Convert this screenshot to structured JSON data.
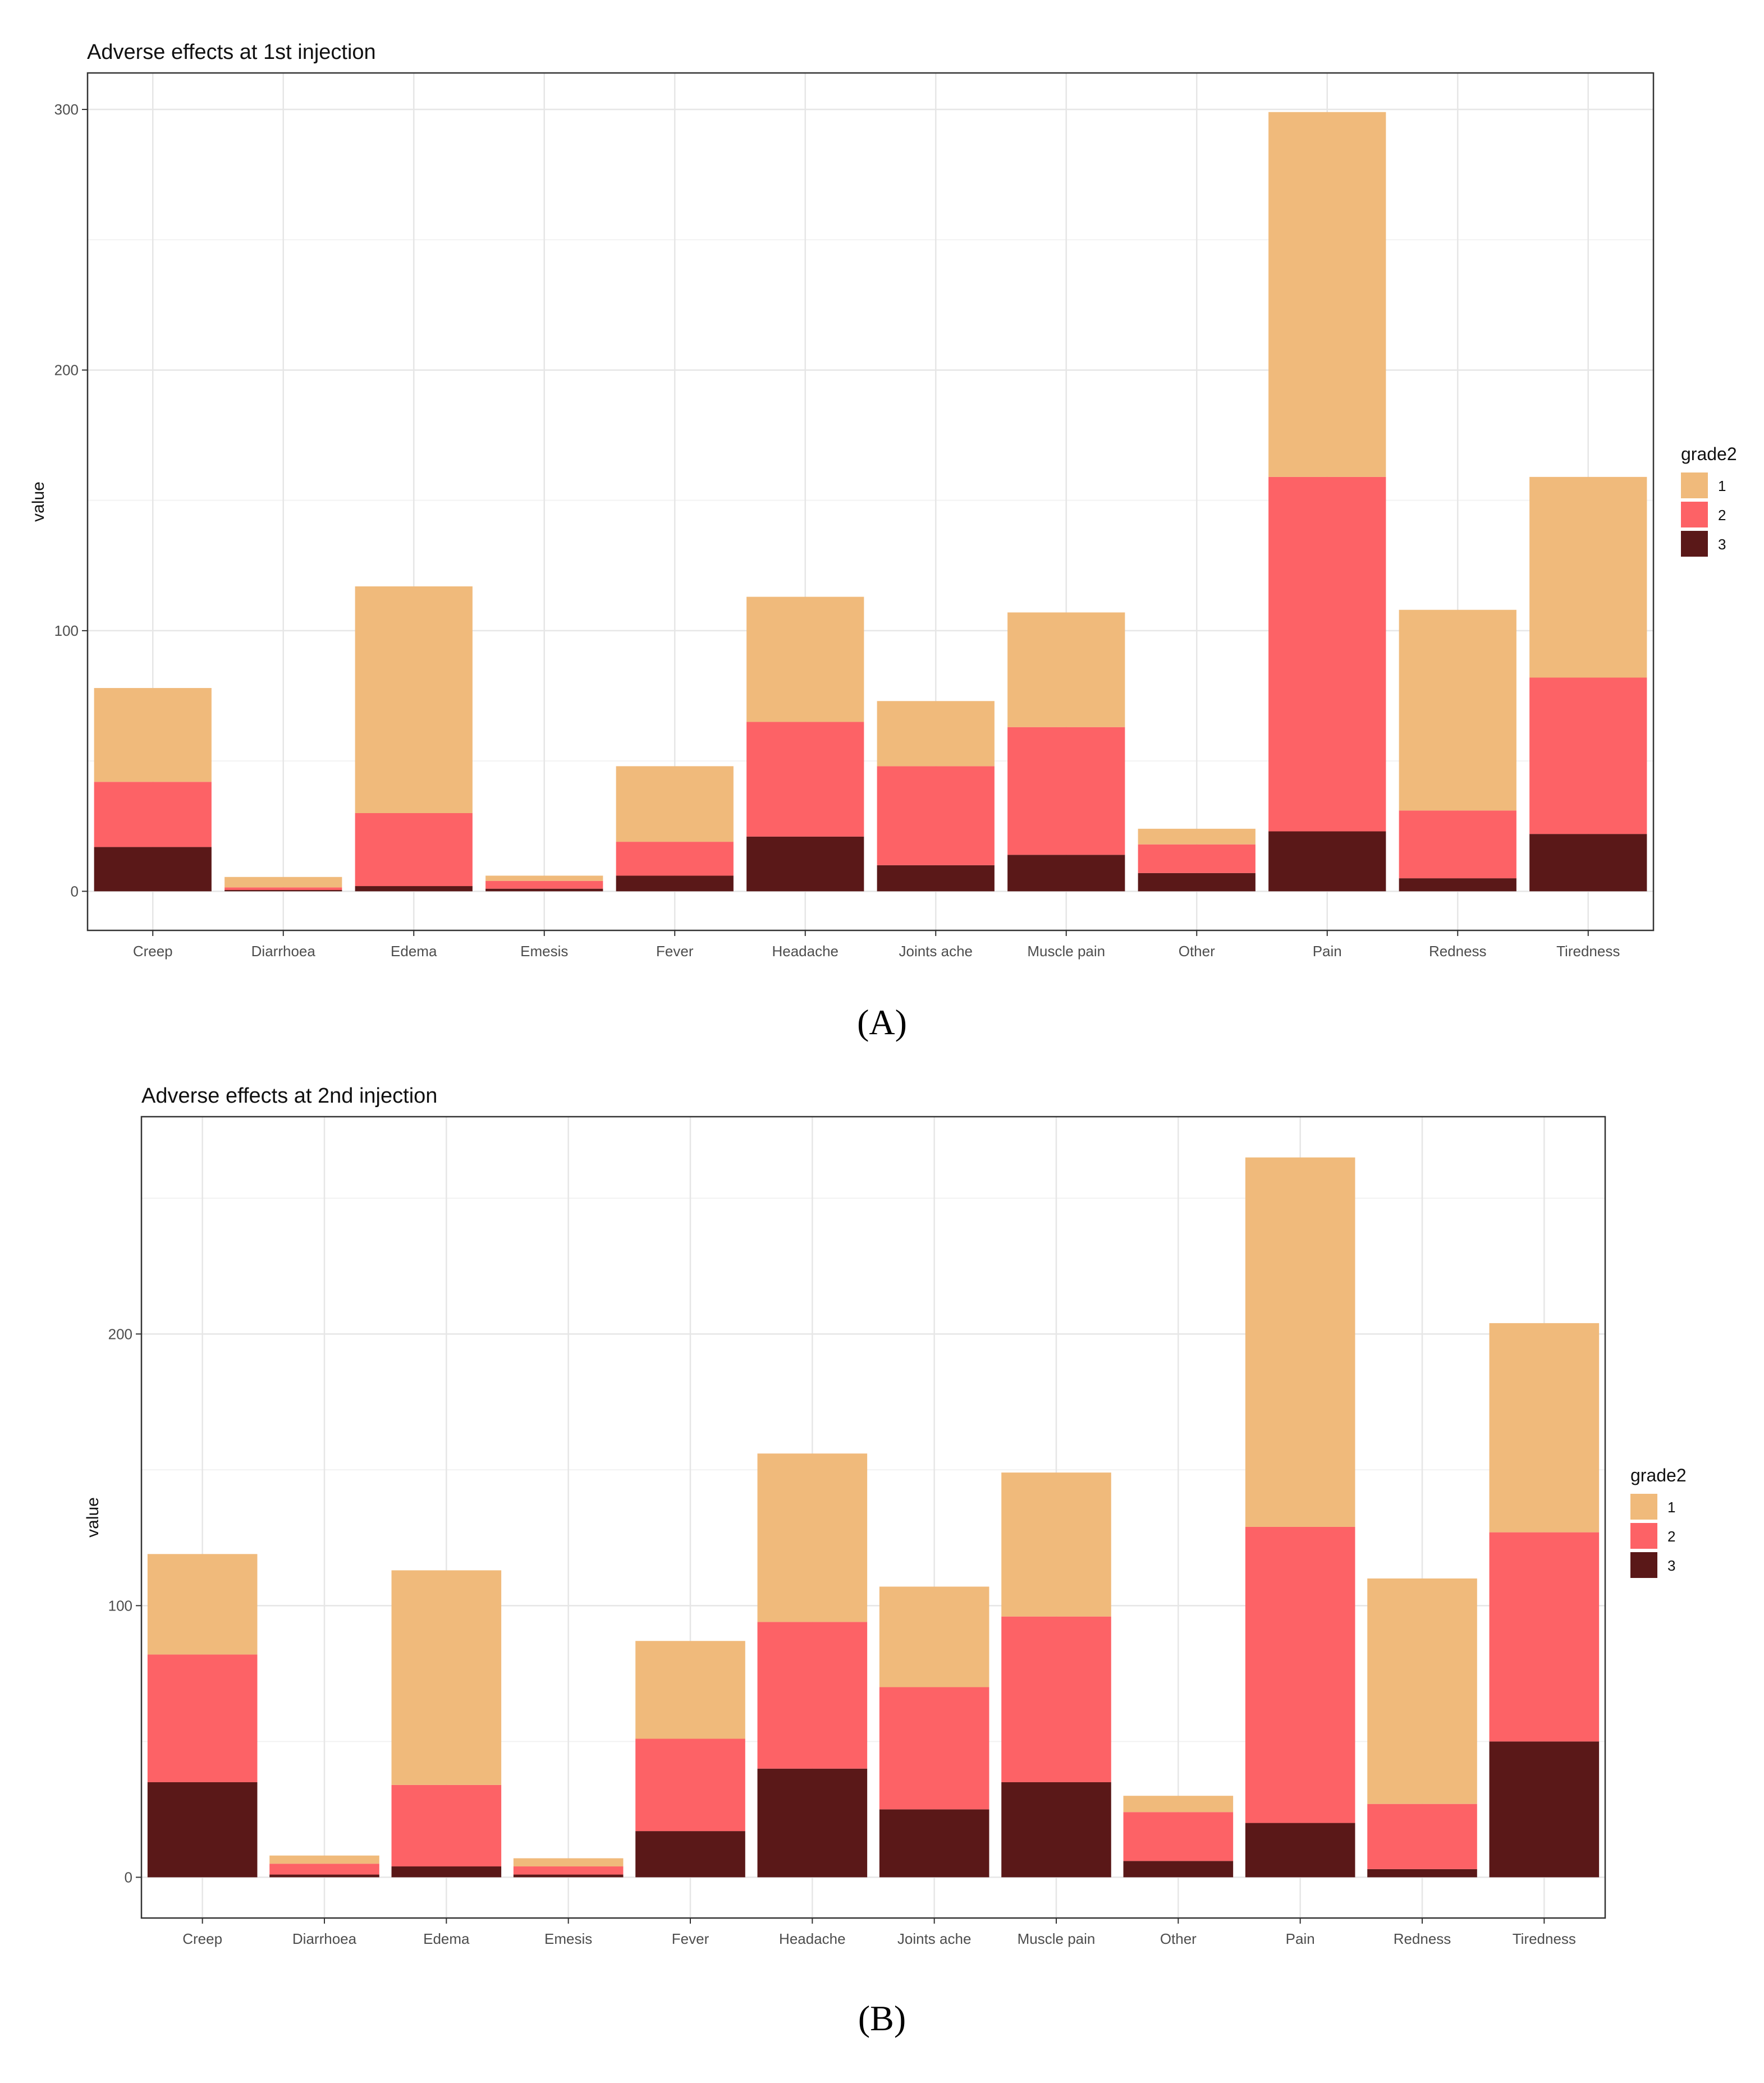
{
  "captions": {
    "a": "(A)",
    "b": "(B)"
  },
  "colors": {
    "grade1": "#F0BA7B",
    "grade2": "#FD6266",
    "grade3": "#5A1818"
  },
  "chart_data": [
    {
      "type": "bar",
      "stacked": true,
      "title": "Adverse effects at 1st injection",
      "xlabel": "",
      "ylabel": "value",
      "ylim": [
        -15,
        314
      ],
      "yticks": [
        0,
        100,
        200,
        300
      ],
      "grid": true,
      "legend": {
        "title": "grade2",
        "position": "right",
        "labels": [
          "1",
          "2",
          "3"
        ]
      },
      "categories": [
        "Creep",
        "Diarrhoea",
        "Edema",
        "Emesis",
        "Fever",
        "Headache",
        "Joints ache",
        "Muscle pain",
        "Other",
        "Pain",
        "Redness",
        "Tiredness"
      ],
      "series": [
        {
          "name": "3",
          "values": [
            17,
            0.5,
            2,
            1,
            6,
            21,
            10,
            14,
            7,
            23,
            5,
            22
          ]
        },
        {
          "name": "2",
          "values": [
            25,
            1,
            28,
            3,
            13,
            44,
            38,
            49,
            11,
            136,
            26,
            60
          ]
        },
        {
          "name": "1",
          "values": [
            36,
            4,
            87,
            2,
            29,
            48,
            25,
            44,
            6,
            140,
            77,
            77
          ]
        }
      ]
    },
    {
      "type": "bar",
      "stacked": true,
      "title": "Adverse effects at 2nd injection",
      "xlabel": "",
      "ylabel": "value",
      "ylim": [
        -15,
        280
      ],
      "yticks": [
        0,
        100,
        200
      ],
      "grid": true,
      "legend": {
        "title": "grade2",
        "position": "right",
        "labels": [
          "1",
          "2",
          "3"
        ]
      },
      "categories": [
        "Creep",
        "Diarrhoea",
        "Edema",
        "Emesis",
        "Fever",
        "Headache",
        "Joints ache",
        "Muscle pain",
        "Other",
        "Pain",
        "Redness",
        "Tiredness"
      ],
      "series": [
        {
          "name": "3",
          "values": [
            35,
            1,
            4,
            1,
            17,
            40,
            25,
            35,
            6,
            20,
            3,
            50
          ]
        },
        {
          "name": "2",
          "values": [
            47,
            4,
            30,
            3,
            34,
            54,
            45,
            61,
            18,
            109,
            24,
            77
          ]
        },
        {
          "name": "1",
          "values": [
            37,
            3,
            79,
            3,
            36,
            62,
            37,
            53,
            6,
            136,
            83,
            77
          ]
        }
      ]
    }
  ]
}
